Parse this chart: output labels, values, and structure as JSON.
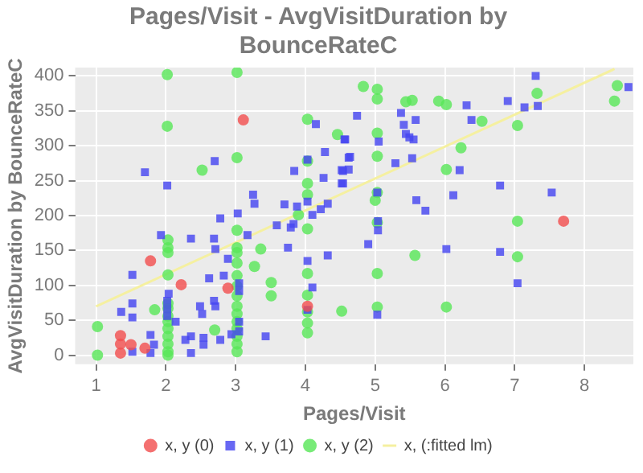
{
  "chart_data": {
    "type": "scatter",
    "title": "Pages/Visit - AvgVisitDuration by BounceRateC",
    "xlabel": "Pages/Visit",
    "ylabel": "AvgVisitDuration by BounceRateC",
    "xlim": [
      0.7,
      8.7
    ],
    "xticks": [
      1,
      2,
      3,
      4,
      5,
      6,
      7,
      8
    ],
    "ylim": [
      -13,
      412
    ],
    "yticks": [
      0,
      50,
      100,
      150,
      200,
      250,
      300,
      350,
      400
    ],
    "grid": true,
    "legend": "bottom",
    "series": [
      {
        "name": "x, y (0)",
        "color": "#f25050",
        "marker": "circle",
        "x": [
          1.35,
          1.35,
          1.35,
          1.5,
          1.7,
          1.78,
          2.22,
          2.89,
          4.03,
          3.11,
          7.7
        ],
        "values": [
          28,
          16,
          3,
          15,
          10,
          135,
          101,
          96,
          70,
          337,
          192
        ]
      },
      {
        "name": "x, y (1)",
        "color": "#4646f0",
        "marker": "square",
        "x": [
          1.7,
          2.02,
          2.7,
          3.25,
          3.27,
          3.03,
          2.78,
          3.7,
          3.88,
          4.03,
          4.03,
          3.84,
          4.15,
          4.28,
          4.26,
          4.54,
          4.54,
          4.56,
          4.62,
          4.1,
          4.22,
          4.32,
          3.59,
          3.83,
          3.79,
          7.3,
          8.63,
          6.9,
          7.14,
          7.33,
          6.31,
          5.37,
          4.74,
          5.58,
          6.38,
          5.41,
          5.44,
          5.49,
          5.55,
          4.57,
          5.05,
          4.64,
          5.53,
          5.29,
          4.62,
          4.52,
          6.21,
          4.52,
          6.79,
          7.53,
          6.12,
          5.59,
          5.72,
          5.03,
          5.04,
          5.04,
          4.9,
          6.02,
          6.79,
          7.04,
          5.03,
          1.52,
          1.36,
          1.52,
          1.52,
          1.78,
          1.83,
          1.78,
          1.52,
          1.93,
          2.36,
          2.69,
          2.71,
          3.17,
          2.89,
          2.83,
          2.62,
          2.69,
          2.71,
          2.49,
          2.52,
          2.04,
          2.02,
          2.02,
          2.02,
          2.14,
          2.28,
          2.36,
          2.36,
          2.54,
          2.54,
          2.78,
          2.94,
          3.05,
          3.05,
          3.05,
          3.05,
          3.43,
          3.75,
          4.03,
          4.1,
          4.03,
          4.32
        ],
        "values": [
          262,
          243,
          278,
          230,
          217,
          203,
          196,
          216,
          213,
          220,
          280,
          264,
          331,
          291,
          254,
          264,
          246,
          309,
          283,
          201,
          209,
          217,
          186,
          188,
          183,
          400,
          384,
          364,
          355,
          357,
          358,
          347,
          343,
          337,
          337,
          330,
          317,
          312,
          309,
          309,
          306,
          284,
          282,
          275,
          266,
          265,
          265,
          246,
          243,
          233,
          229,
          222,
          207,
          233,
          192,
          179,
          159,
          152,
          148,
          103,
          58,
          115,
          62,
          74,
          54,
          29,
          15,
          3,
          5,
          172,
          167,
          167,
          152,
          172,
          138,
          114,
          110,
          78,
          70,
          70,
          59,
          88,
          78,
          67,
          56,
          48,
          22,
          27,
          3,
          25,
          15,
          22,
          30,
          103,
          92,
          48,
          34,
          27,
          154,
          135,
          97,
          65,
          143
        ]
      },
      {
        "name": "x, y (2)",
        "color": "#5ae65a",
        "marker": "circle",
        "x": [
          2.02,
          3.02,
          2.02,
          4.03,
          4.46,
          3.02,
          2.52,
          4.03,
          4.03,
          4.03,
          3.9,
          4.03,
          4.83,
          5.03,
          5.03,
          5.44,
          5.53,
          5.91,
          6.02,
          7.32,
          8.47,
          8.43,
          5.03,
          5.03,
          6.53,
          7.04,
          6.23,
          6.02,
          5.03,
          5.0,
          5.03,
          7.04,
          5.57,
          7.04,
          5.03,
          4.52,
          5.03,
          6.02,
          1.02,
          1.02,
          1.84,
          2.03,
          2.03,
          2.03,
          2.03,
          2.03,
          2.03,
          2.03,
          2.03,
          2.03,
          2.03,
          2.03,
          2.03,
          2.03,
          2.7,
          3.02,
          3.02,
          3.02,
          3.02,
          3.02,
          3.02,
          3.02,
          3.02,
          3.02,
          3.02,
          3.02,
          3.02,
          3.02,
          3.02,
          3.36,
          3.27,
          3.51,
          3.51,
          4.03,
          4.03,
          4.03,
          4.03,
          4.03
        ],
        "values": [
          402,
          405,
          328,
          338,
          316,
          283,
          265,
          278,
          246,
          230,
          201,
          181,
          385,
          381,
          367,
          363,
          365,
          364,
          359,
          375,
          386,
          364,
          318,
          285,
          335,
          329,
          297,
          266,
          233,
          222,
          190,
          192,
          143,
          141,
          117,
          63,
          69,
          69,
          41,
          0,
          65,
          165,
          154,
          147,
          115,
          74,
          67,
          56,
          48,
          38,
          27,
          16,
          5,
          0,
          36,
          179,
          154,
          147,
          132,
          114,
          99,
          85,
          70,
          59,
          48,
          38,
          27,
          16,
          5,
          152,
          127,
          104,
          85,
          117,
          86,
          62,
          46,
          32
        ]
      },
      {
        "name": "x, (:fitted lm)",
        "color": "#f5f0a0",
        "type": "line",
        "x": [
          1,
          8.43
        ],
        "values": [
          70,
          410
        ]
      }
    ]
  }
}
